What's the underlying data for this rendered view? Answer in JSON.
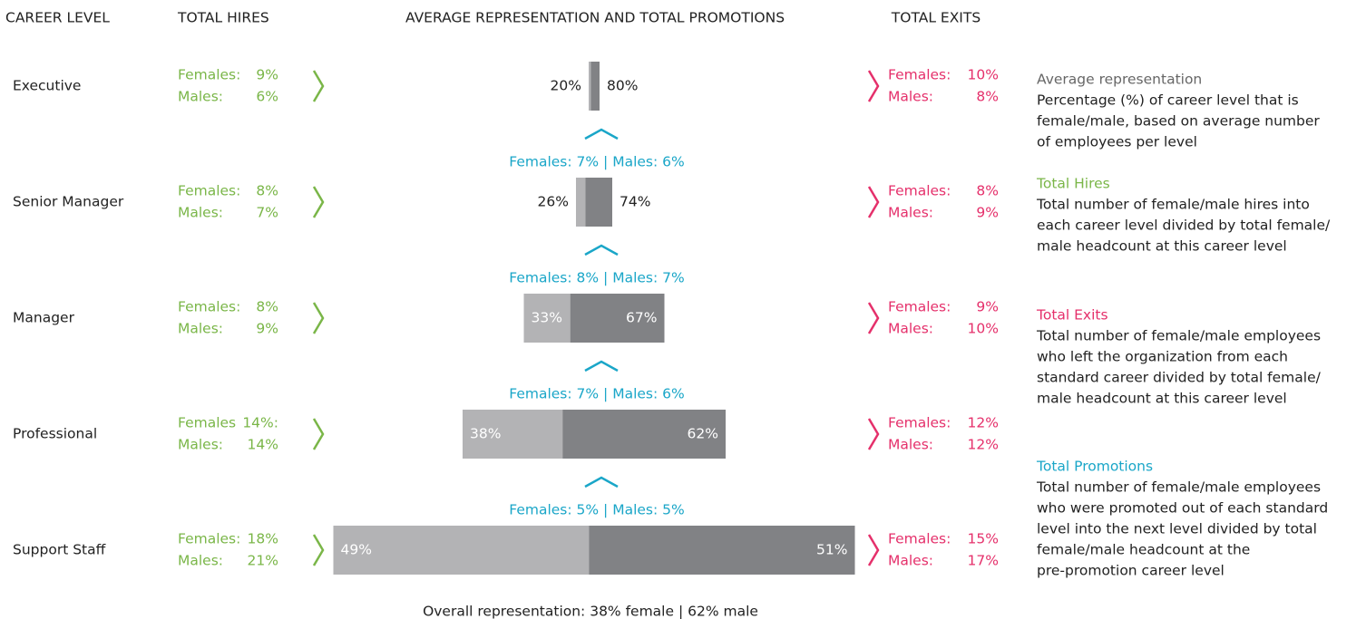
{
  "headers": {
    "level": "CAREER LEVEL",
    "hires": "TOTAL HIRES",
    "representation": "AVERAGE REPRESENTATION AND TOTAL PROMOTIONS",
    "exits": "TOTAL EXITS"
  },
  "levels": [
    {
      "name": "Executive",
      "hires": [
        {
          "label": "Females:",
          "value": "9%"
        },
        {
          "label": "Males:",
          "value": "6%"
        }
      ],
      "representation": {
        "values": [
          20,
          80
        ],
        "value_labels": [
          "20%",
          "80%"
        ]
      },
      "exits": [
        {
          "label": "Females:",
          "value": "10%"
        },
        {
          "label": "Males:",
          "value": "8%"
        }
      ]
    },
    {
      "name": "Senior Manager",
      "hires": [
        {
          "label": "Females:",
          "value": "8%"
        },
        {
          "label": "Males:",
          "value": "7%"
        }
      ],
      "representation": {
        "values": [
          26,
          74
        ],
        "value_labels": [
          "26%",
          "74%"
        ]
      },
      "exits": [
        {
          "label": "Females:",
          "value": "8%"
        },
        {
          "label": "Males:",
          "value": "9%"
        }
      ]
    },
    {
      "name": "Manager",
      "hires": [
        {
          "label": "Females:",
          "value": "8%"
        },
        {
          "label": "Males:",
          "value": "9%"
        }
      ],
      "representation": {
        "values": [
          33,
          67
        ],
        "value_labels": [
          "33%",
          "67%"
        ]
      },
      "exits": [
        {
          "label": "Females:",
          "value": "9%"
        },
        {
          "label": "Males:",
          "value": "10%"
        }
      ]
    },
    {
      "name": "Professional",
      "hires": [
        {
          "label": "Females",
          "value": "14%:"
        },
        {
          "label": "Males:",
          "value": "14%"
        }
      ],
      "representation": {
        "values": [
          38,
          62
        ],
        "value_labels": [
          "38%",
          "62%"
        ]
      },
      "exits": [
        {
          "label": "Females:",
          "value": "12%"
        },
        {
          "label": "Males:",
          "value": "12%"
        }
      ]
    },
    {
      "name": "Support Staff",
      "hires": [
        {
          "label": "Females:",
          "value": "18%"
        },
        {
          "label": "Males:",
          "value": "21%"
        }
      ],
      "representation": {
        "values": [
          49,
          51
        ],
        "value_labels": [
          "49%",
          "51%"
        ]
      },
      "exits": [
        {
          "label": "Females:",
          "value": "15%"
        },
        {
          "label": "Males:",
          "value": "17%"
        }
      ]
    }
  ],
  "promotions": [
    "Females: 7% | Males: 6%",
    "Females: 8% | Males: 7%",
    "Females: 7% | Males: 6%",
    "Females: 5% | Males: 5%"
  ],
  "footer": "Overall representation: 38% female | 62% male",
  "legend": [
    {
      "title": "Average representation",
      "lines": [
        "Percentage (%) of career level that is",
        "female/male, based on average number",
        "of employees per level"
      ]
    },
    {
      "title": "Total Hires",
      "lines": [
        "Total number of female/male hires into",
        "each career level divided by total female/",
        "male  headcount at this career level"
      ]
    },
    {
      "title": "Total Exits",
      "lines": [
        "Total number of female/male employees",
        "who left the organization from each",
        "standard career divided by total female/",
        "male headcount at this career level"
      ]
    },
    {
      "title": "Total Promotions",
      "lines": [
        "Total number of female/male employees",
        "who were promoted out of each standard",
        "level into the next level divided by total",
        "female/male headcount at the",
        "pre-promotion career level"
      ]
    }
  ]
}
